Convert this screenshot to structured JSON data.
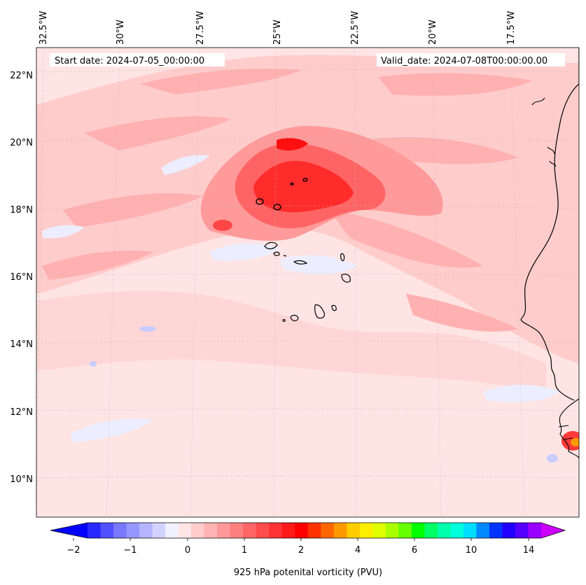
{
  "map": {
    "start_date": "Start date: 2024-07-05_00:00:00",
    "valid_date": "Valid_date: 2024-07-08T00:00:00.00",
    "lon_labels": [
      "32.5°W",
      "30°W",
      "27.5°W",
      "25°W",
      "22.5°W",
      "20°W",
      "17.5°W"
    ],
    "lat_labels": [
      "22°N",
      "20°N",
      "18°N",
      "16°N",
      "14°N",
      "12°N",
      "10°N"
    ],
    "colorbar": {
      "label": "925 hPa potenital vorticity (PVU)",
      "ticks": [
        "−2",
        "−1",
        "0",
        "1",
        "2",
        "4",
        "6",
        "10",
        "14"
      ],
      "colors": [
        "#0000ff",
        "#2828ff",
        "#5050ff",
        "#7878ff",
        "#9696ff",
        "#b4b4ff",
        "#d2d2ff",
        "#f0f0ff",
        "#ffe6e6",
        "#ffcccc",
        "#ffb3b3",
        "#ff9999",
        "#ff8080",
        "#ff6666",
        "#ff4d4d",
        "#ff3333",
        "#ff1a1a",
        "#ff0000",
        "#ff3300",
        "#ff6600",
        "#ff9900",
        "#ffcc00",
        "#ffee00",
        "#e0ff00",
        "#aaff00",
        "#66ff00",
        "#00ff00",
        "#00ff66",
        "#00ffaa",
        "#00ffdd",
        "#00ddff",
        "#0088ff",
        "#0033ff",
        "#2200ff",
        "#5500ff",
        "#9900ff",
        "#cc00ff"
      ]
    },
    "colors": {
      "background": "#ffe4e4",
      "light": "#ffcccc",
      "medium": "#ffa6a6",
      "strong": "#ff7a7a",
      "core": "#ff3b3b",
      "max": "#ff1010",
      "negative": "#eceeff",
      "coast": "#000000"
    }
  }
}
